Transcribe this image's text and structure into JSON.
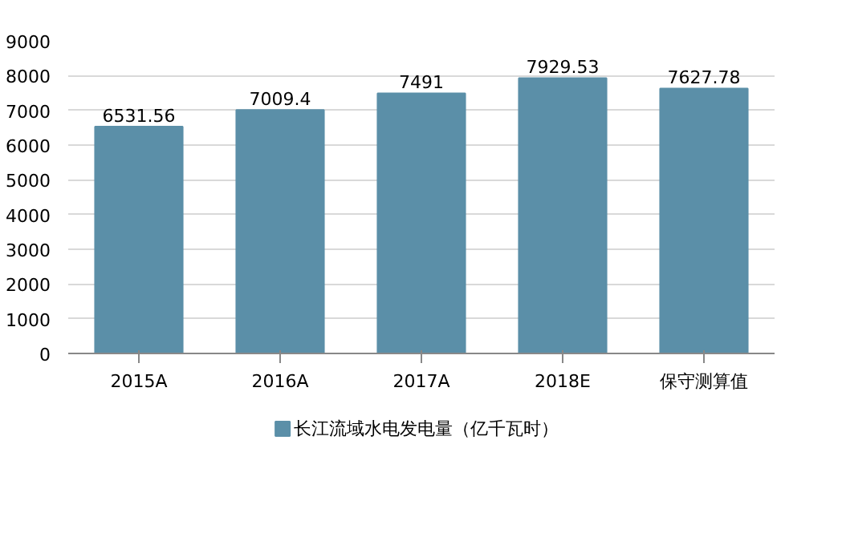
{
  "chart_data": {
    "type": "bar",
    "categories": [
      "2015A",
      "2016A",
      "2017A",
      "2018E",
      "保守测算值"
    ],
    "series": [
      {
        "name": "长江流域水电发电量（亿千瓦时）",
        "color": "#5b8fa8",
        "values": [
          6531.56,
          7009.4,
          7491,
          7929.53,
          7627.78
        ]
      }
    ],
    "value_labels": [
      "6531.56",
      "7009.4",
      "7491",
      "7929.53",
      "7627.78"
    ],
    "ylim": [
      0,
      9000
    ],
    "yticks": [
      0,
      1000,
      2000,
      3000,
      4000,
      5000,
      6000,
      7000,
      8000,
      9000
    ],
    "grid": "y",
    "legend": "bottom"
  }
}
